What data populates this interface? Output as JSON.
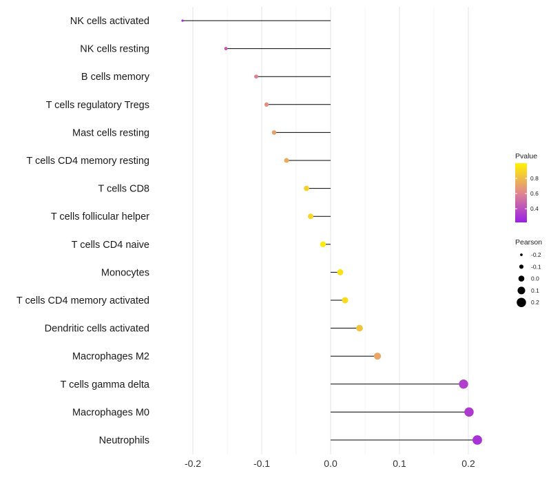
{
  "chart_data": {
    "type": "lollipop",
    "categories": [
      "NK cells activated",
      "NK cells resting",
      "B cells memory",
      "T cells regulatory  Tregs ",
      "Mast cells resting",
      "T cells CD4 memory resting",
      "T cells CD8",
      "T cells follicular helper",
      "T cells CD4 naive",
      "Monocytes",
      "T cells CD4 memory activated",
      "Dendritic cells activated",
      "Macrophages M2",
      "T cells gamma delta",
      "Macrophages M0",
      "Neutrophils"
    ],
    "pearson": [
      -0.215,
      -0.152,
      -0.108,
      -0.093,
      -0.082,
      -0.064,
      -0.035,
      -0.029,
      -0.011,
      0.014,
      0.021,
      0.042,
      0.068,
      0.193,
      0.201,
      0.213
    ],
    "pvalue": [
      0.27,
      0.44,
      0.59,
      0.64,
      0.69,
      0.74,
      0.88,
      0.9,
      0.97,
      0.94,
      0.92,
      0.83,
      0.72,
      0.34,
      0.32,
      0.29
    ],
    "xlim": [
      -0.25,
      0.25
    ],
    "x_ticks": [
      -0.2,
      -0.1,
      0.0,
      0.1,
      0.2
    ],
    "x_tick_labels": [
      "-0.2",
      "-0.1",
      "0.0",
      "0.1",
      "0.2"
    ],
    "color_legend": {
      "title": "Pvalue",
      "range": [
        0.22,
        1.0
      ],
      "ticks": [
        0.4,
        0.6,
        0.8
      ],
      "tick_labels": [
        "0.4",
        "0.6",
        "0.8"
      ],
      "low_color": "#9a1fe6",
      "mid_color": "#e0888e",
      "high_color": "#fff200"
    },
    "size_legend": {
      "title": "Pearson",
      "values": [
        -0.2,
        -0.1,
        0.0,
        0.1,
        0.2
      ],
      "labels": [
        "-0.2",
        "-0.1",
        "0.0",
        "0.1",
        "0.2"
      ]
    },
    "grid": true,
    "legend_position": "right"
  }
}
